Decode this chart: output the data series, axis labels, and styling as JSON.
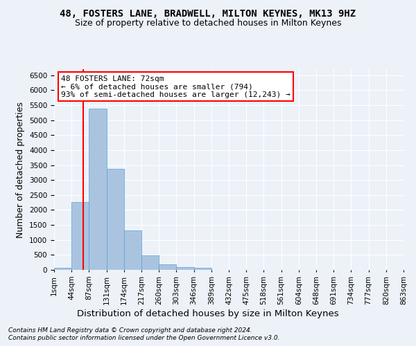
{
  "title1": "48, FOSTERS LANE, BRADWELL, MILTON KEYNES, MK13 9HZ",
  "title2": "Size of property relative to detached houses in Milton Keynes",
  "xlabel": "Distribution of detached houses by size in Milton Keynes",
  "ylabel": "Number of detached properties",
  "footer1": "Contains HM Land Registry data © Crown copyright and database right 2024.",
  "footer2": "Contains public sector information licensed under the Open Government Licence v3.0.",
  "annotation_line1": "48 FOSTERS LANE: 72sqm",
  "annotation_line2": "← 6% of detached houses are smaller (794)",
  "annotation_line3": "93% of semi-detached houses are larger (12,243) →",
  "bar_values": [
    70,
    2270,
    5380,
    3370,
    1310,
    490,
    195,
    90,
    60,
    0,
    0,
    0,
    0,
    0,
    0,
    0,
    0,
    0,
    0,
    0
  ],
  "bin_labels": [
    "1sqm",
    "44sqm",
    "87sqm",
    "131sqm",
    "174sqm",
    "217sqm",
    "260sqm",
    "303sqm",
    "346sqm",
    "389sqm",
    "432sqm",
    "475sqm",
    "518sqm",
    "561sqm",
    "604sqm",
    "648sqm",
    "691sqm",
    "734sqm",
    "777sqm",
    "820sqm",
    "863sqm"
  ],
  "bar_color": "#aac4e0",
  "bar_edge_color": "#5a9fd4",
  "ylim": [
    0,
    6700
  ],
  "yticks": [
    0,
    500,
    1000,
    1500,
    2000,
    2500,
    3000,
    3500,
    4000,
    4500,
    5000,
    5500,
    6000,
    6500
  ],
  "bg_color": "#edf2f9",
  "grid_color": "#ffffff",
  "title_fontsize": 10,
  "subtitle_fontsize": 9,
  "axis_label_fontsize": 9,
  "tick_fontsize": 7.5,
  "footer_fontsize": 6.5,
  "annotation_fontsize": 8
}
